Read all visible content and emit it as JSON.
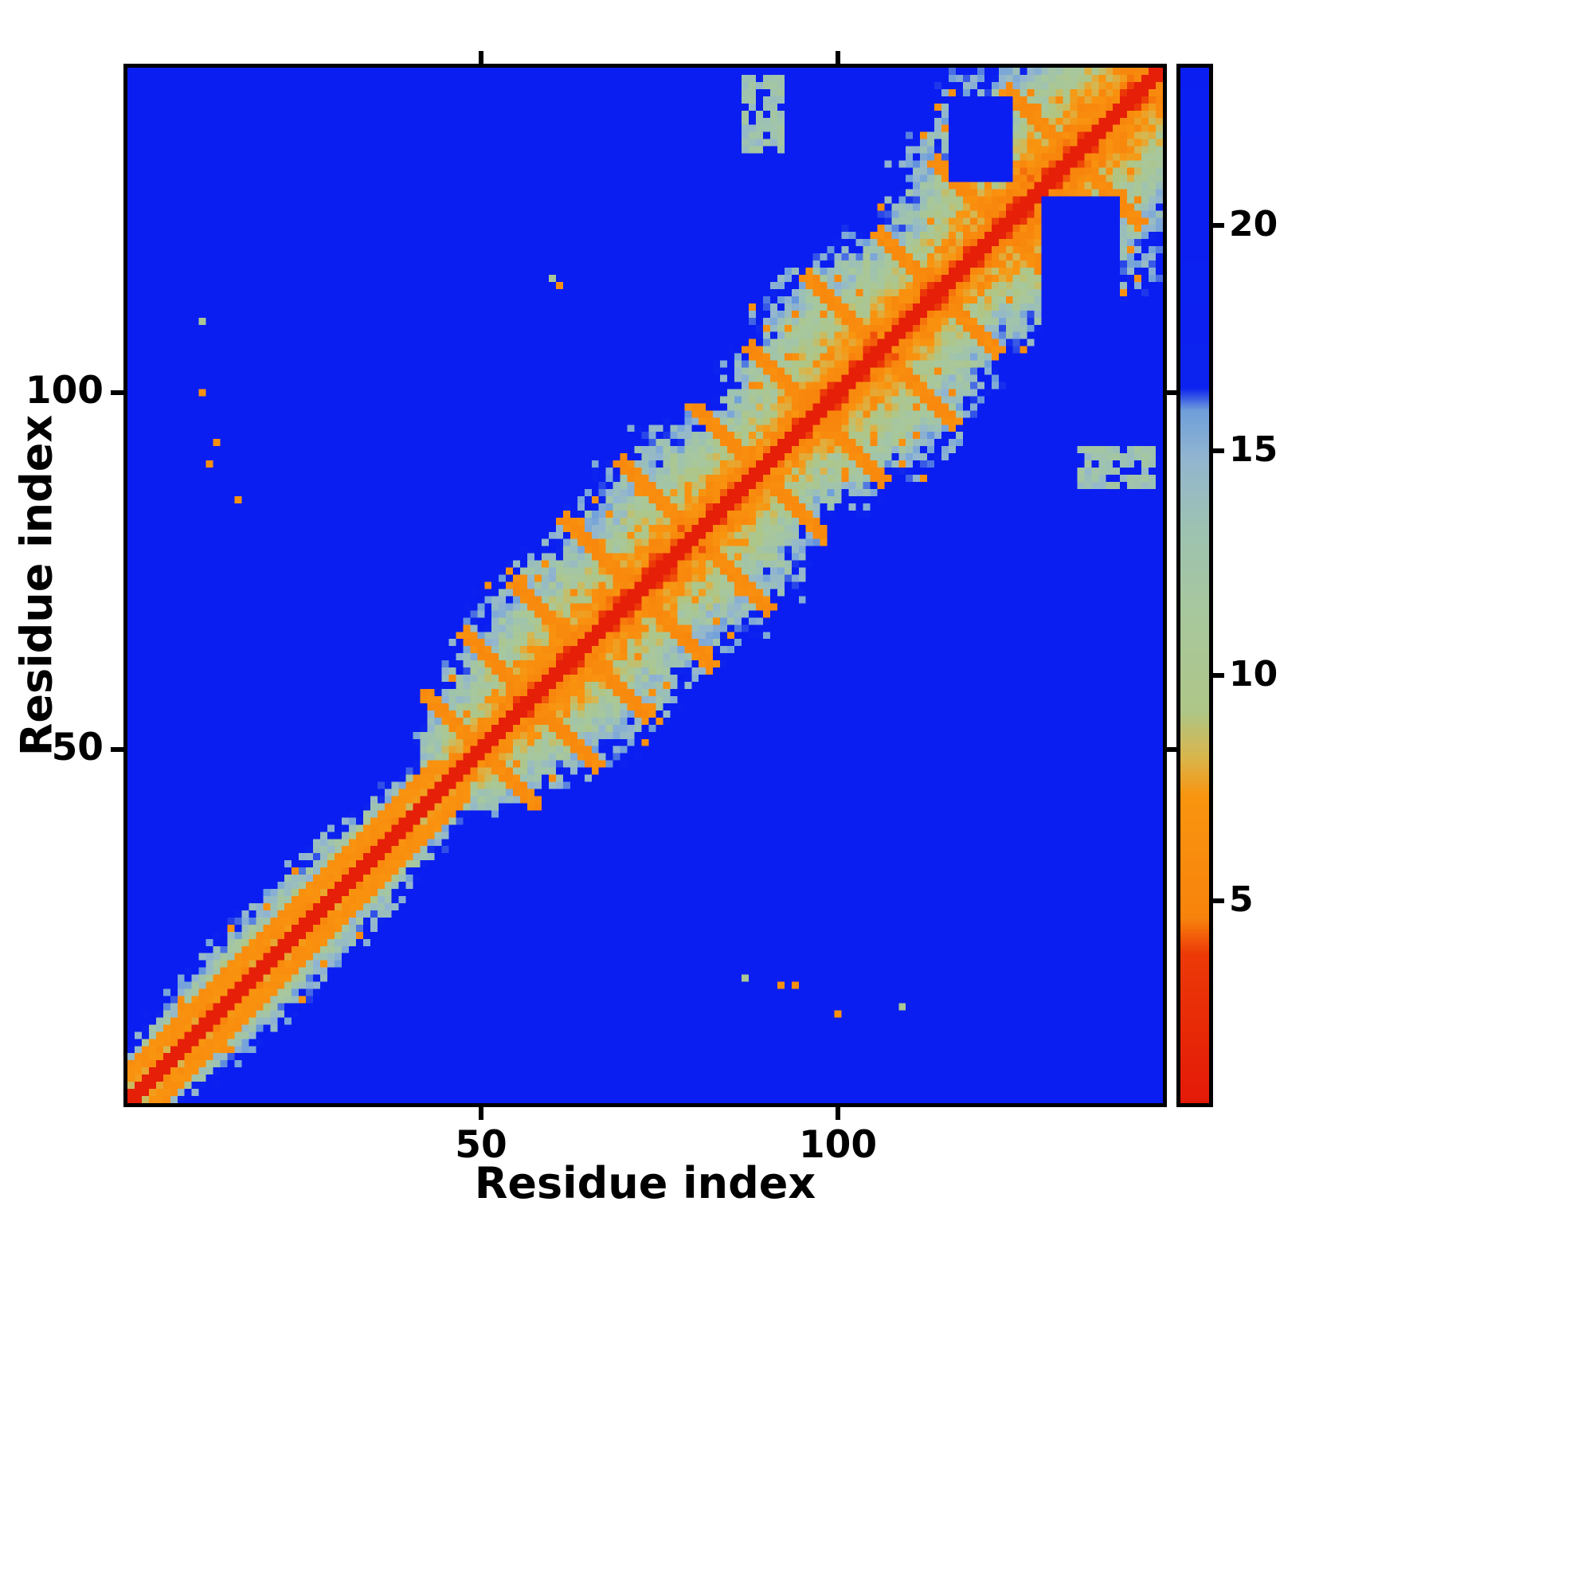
{
  "chart_data": {
    "type": "heatmap",
    "title": "",
    "xlabel": "Residue index",
    "ylabel": "Residue index",
    "x_ticks": [
      "50",
      "100"
    ],
    "y_ticks": [
      "50",
      "100"
    ],
    "x_range": [
      0.5,
      145.5
    ],
    "y_range": [
      0.5,
      145.5
    ],
    "n_residues": 145,
    "vmax": 24,
    "noise_seed": 7,
    "speckle_threshold": 0.962,
    "colorbar": {
      "ticks": [
        "5",
        "10",
        "15",
        "20"
      ],
      "vmin": 0.5,
      "vmax": 23.5
    },
    "colormap_stops": [
      [
        0,
        "#e21508"
      ],
      [
        3.8,
        "#ec3a07"
      ],
      [
        4.6,
        "#f8830c"
      ],
      [
        7.3,
        "#f9950f"
      ],
      [
        8.2,
        "#d8b64e"
      ],
      [
        9.2,
        "#aec687"
      ],
      [
        11.5,
        "#a7c79e"
      ],
      [
        13.3,
        "#9dc2b2"
      ],
      [
        14.8,
        "#93b6cf"
      ],
      [
        15.9,
        "#6f9fdb"
      ],
      [
        16.4,
        "#0c22ee"
      ],
      [
        24,
        "#0a1ef2"
      ]
    ],
    "envelope": [
      [
        1,
        7
      ],
      [
        10,
        9
      ],
      [
        20,
        10
      ],
      [
        33,
        10
      ],
      [
        40,
        8
      ],
      [
        44,
        7
      ],
      [
        48,
        12
      ],
      [
        54,
        16
      ],
      [
        60,
        20
      ],
      [
        66,
        21
      ],
      [
        72,
        18
      ],
      [
        78,
        22
      ],
      [
        84,
        20
      ],
      [
        90,
        15
      ],
      [
        96,
        20
      ],
      [
        103,
        24
      ],
      [
        110,
        21
      ],
      [
        115,
        17
      ],
      [
        120,
        22
      ],
      [
        127,
        26
      ],
      [
        136,
        24
      ],
      [
        145,
        21
      ]
    ],
    "helix_band": {
      "range": [
        1,
        46
      ],
      "offsets": [
        3,
        4,
        5
      ],
      "value": 6.0
    },
    "ladders": [
      {
        "sum": 100,
        "lo": 40,
        "hi": 60
      },
      {
        "sum": 114,
        "lo": 48,
        "hi": 66
      },
      {
        "sum": 128,
        "lo": 55,
        "hi": 73
      },
      {
        "sum": 144,
        "lo": 62,
        "hi": 82
      },
      {
        "sum": 160,
        "lo": 70,
        "hi": 90
      },
      {
        "sum": 178,
        "lo": 80,
        "hi": 98
      },
      {
        "sum": 194,
        "lo": 88,
        "hi": 106
      },
      {
        "sum": 212,
        "lo": 96,
        "hi": 116
      },
      {
        "sum": 228,
        "lo": 106,
        "hi": 122
      },
      {
        "sum": 246,
        "lo": 114,
        "hi": 132
      },
      {
        "sum": 266,
        "lo": 124,
        "hi": 142
      },
      {
        "sum": 288,
        "lo": 138,
        "hi": 145
      }
    ],
    "holes": [
      [
        129,
        139,
        101,
        127
      ],
      [
        116,
        124,
        130,
        141
      ]
    ],
    "patches": [
      [
        87,
        92,
        134,
        144,
        13
      ]
    ],
    "dots": [
      [
        11,
        100,
        6.5
      ],
      [
        13,
        93,
        6.5
      ],
      [
        12,
        90,
        6.5
      ],
      [
        16,
        85,
        7
      ],
      [
        11,
        110,
        10.5
      ],
      [
        87,
        18,
        10.5
      ],
      [
        92,
        17,
        6.5
      ],
      [
        94,
        17,
        6.5
      ],
      [
        100,
        13,
        6.5
      ],
      [
        109,
        14,
        10.5
      ],
      [
        60,
        116,
        11
      ],
      [
        61,
        115,
        6.5
      ]
    ]
  }
}
